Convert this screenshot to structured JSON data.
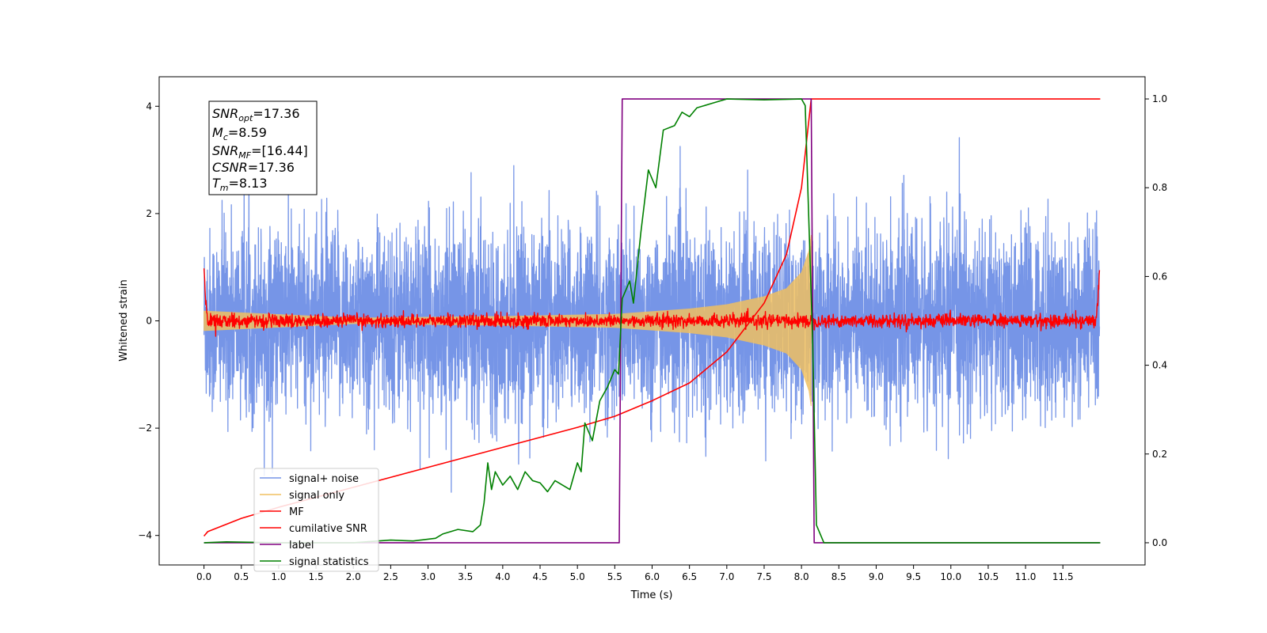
{
  "chart_data": {
    "type": "line",
    "xlabel": "Time (s)",
    "ylabel": "Whitened strain",
    "xlim": [
      -0.6,
      12.6
    ],
    "ylim": [
      -4.55,
      4.55
    ],
    "ylim_right": [
      -0.05,
      1.05
    ],
    "x_ticks": [
      "0.0",
      "0.5",
      "1.0",
      "1.5",
      "2.0",
      "2.5",
      "3.0",
      "3.5",
      "4.0",
      "4.5",
      "5.0",
      "5.5",
      "6.0",
      "6.5",
      "7.0",
      "7.5",
      "8.0",
      "8.5",
      "9.0",
      "9.5",
      "10.0",
      "10.5",
      "11.0",
      "11.5"
    ],
    "y_ticks_left": [
      "4",
      "2",
      "0",
      "−2",
      "−4"
    ],
    "y_ticks_right": [
      "1.0",
      "0.8",
      "0.6",
      "0.4",
      "0.2",
      "0.0"
    ],
    "grid": false,
    "legend_position": "lower-left",
    "info_box": {
      "lines": [
        {
          "sym": "SNR",
          "sub": "opt",
          "val": "=17.36"
        },
        {
          "sym": "M",
          "sub": "c",
          "val": "=8.59"
        },
        {
          "sym": "SNR",
          "sub": "MF",
          "val": "=[16.44]"
        },
        {
          "sym": "CSNR",
          "sub": "",
          "val": "=17.36"
        },
        {
          "sym": "T",
          "sub": "m",
          "val": "=8.13"
        }
      ]
    },
    "series": [
      {
        "name": "signal+ noise",
        "color": "#6f8fe6",
        "axis": "left",
        "style": "noise",
        "x_range": [
          0.0,
          11.99
        ],
        "amplitude": 1.6
      },
      {
        "name": "signal only",
        "color": "#f0c060",
        "axis": "left",
        "style": "chirp",
        "x_range": [
          0.0,
          8.13
        ],
        "envelope": [
          [
            0.0,
            0.18
          ],
          [
            2.0,
            0.05
          ],
          [
            4.0,
            0.08
          ],
          [
            5.5,
            0.12
          ],
          [
            6.5,
            0.22
          ],
          [
            7.0,
            0.3
          ],
          [
            7.5,
            0.45
          ],
          [
            7.8,
            0.6
          ],
          [
            8.0,
            0.9
          ],
          [
            8.1,
            1.3
          ],
          [
            8.13,
            1.6
          ]
        ]
      },
      {
        "name": "MF",
        "color": "#ff0000",
        "axis": "left",
        "style": "jitter",
        "x_range": [
          0.0,
          11.99
        ],
        "points": [
          [
            0.0,
            1.0
          ],
          [
            0.02,
            0.4
          ],
          [
            0.05,
            0.0
          ],
          [
            11.94,
            0.0
          ],
          [
            11.97,
            0.4
          ],
          [
            11.99,
            0.95
          ]
        ],
        "jitter": 0.06
      },
      {
        "name": "cumilative SNR",
        "color": "#ff0000",
        "axis": "right",
        "points": [
          [
            0.0,
            0.015
          ],
          [
            0.05,
            0.025
          ],
          [
            0.5,
            0.055
          ],
          [
            1.0,
            0.08
          ],
          [
            2.0,
            0.125
          ],
          [
            3.0,
            0.17
          ],
          [
            4.0,
            0.215
          ],
          [
            5.0,
            0.26
          ],
          [
            5.5,
            0.285
          ],
          [
            6.0,
            0.32
          ],
          [
            6.5,
            0.36
          ],
          [
            7.0,
            0.43
          ],
          [
            7.5,
            0.54
          ],
          [
            7.8,
            0.65
          ],
          [
            8.0,
            0.8
          ],
          [
            8.13,
            1.0
          ],
          [
            12.0,
            1.0
          ]
        ]
      },
      {
        "name": "label",
        "color": "#800080",
        "axis": "right",
        "points": [
          [
            0.0,
            0.0
          ],
          [
            5.56,
            0.0
          ],
          [
            5.6,
            1.0
          ],
          [
            8.13,
            1.0
          ],
          [
            8.17,
            0.0
          ],
          [
            12.0,
            0.0
          ]
        ]
      },
      {
        "name": "signal statistics",
        "color": "#008000",
        "axis": "right",
        "points": [
          [
            0.0,
            0.0
          ],
          [
            0.3,
            0.002
          ],
          [
            1.0,
            0.0
          ],
          [
            2.0,
            0.0
          ],
          [
            2.5,
            0.006
          ],
          [
            2.8,
            0.004
          ],
          [
            3.1,
            0.01
          ],
          [
            3.2,
            0.02
          ],
          [
            3.4,
            0.03
          ],
          [
            3.6,
            0.025
          ],
          [
            3.7,
            0.04
          ],
          [
            3.75,
            0.09
          ],
          [
            3.8,
            0.18
          ],
          [
            3.85,
            0.12
          ],
          [
            3.9,
            0.16
          ],
          [
            4.0,
            0.13
          ],
          [
            4.1,
            0.15
          ],
          [
            4.2,
            0.12
          ],
          [
            4.3,
            0.16
          ],
          [
            4.4,
            0.14
          ],
          [
            4.5,
            0.135
          ],
          [
            4.6,
            0.115
          ],
          [
            4.7,
            0.14
          ],
          [
            4.8,
            0.13
          ],
          [
            4.9,
            0.12
          ],
          [
            5.0,
            0.18
          ],
          [
            5.05,
            0.16
          ],
          [
            5.1,
            0.27
          ],
          [
            5.2,
            0.23
          ],
          [
            5.3,
            0.32
          ],
          [
            5.4,
            0.35
          ],
          [
            5.5,
            0.39
          ],
          [
            5.55,
            0.38
          ],
          [
            5.6,
            0.55
          ],
          [
            5.7,
            0.59
          ],
          [
            5.75,
            0.54
          ],
          [
            5.85,
            0.7
          ],
          [
            5.95,
            0.84
          ],
          [
            6.05,
            0.8
          ],
          [
            6.15,
            0.93
          ],
          [
            6.3,
            0.94
          ],
          [
            6.4,
            0.97
          ],
          [
            6.5,
            0.96
          ],
          [
            6.6,
            0.98
          ],
          [
            6.8,
            0.99
          ],
          [
            7.0,
            1.0
          ],
          [
            7.5,
            0.998
          ],
          [
            8.0,
            1.0
          ],
          [
            8.05,
            0.985
          ],
          [
            8.15,
            0.45
          ],
          [
            8.2,
            0.04
          ],
          [
            8.3,
            0.0
          ],
          [
            12.0,
            0.0
          ]
        ]
      }
    ]
  }
}
